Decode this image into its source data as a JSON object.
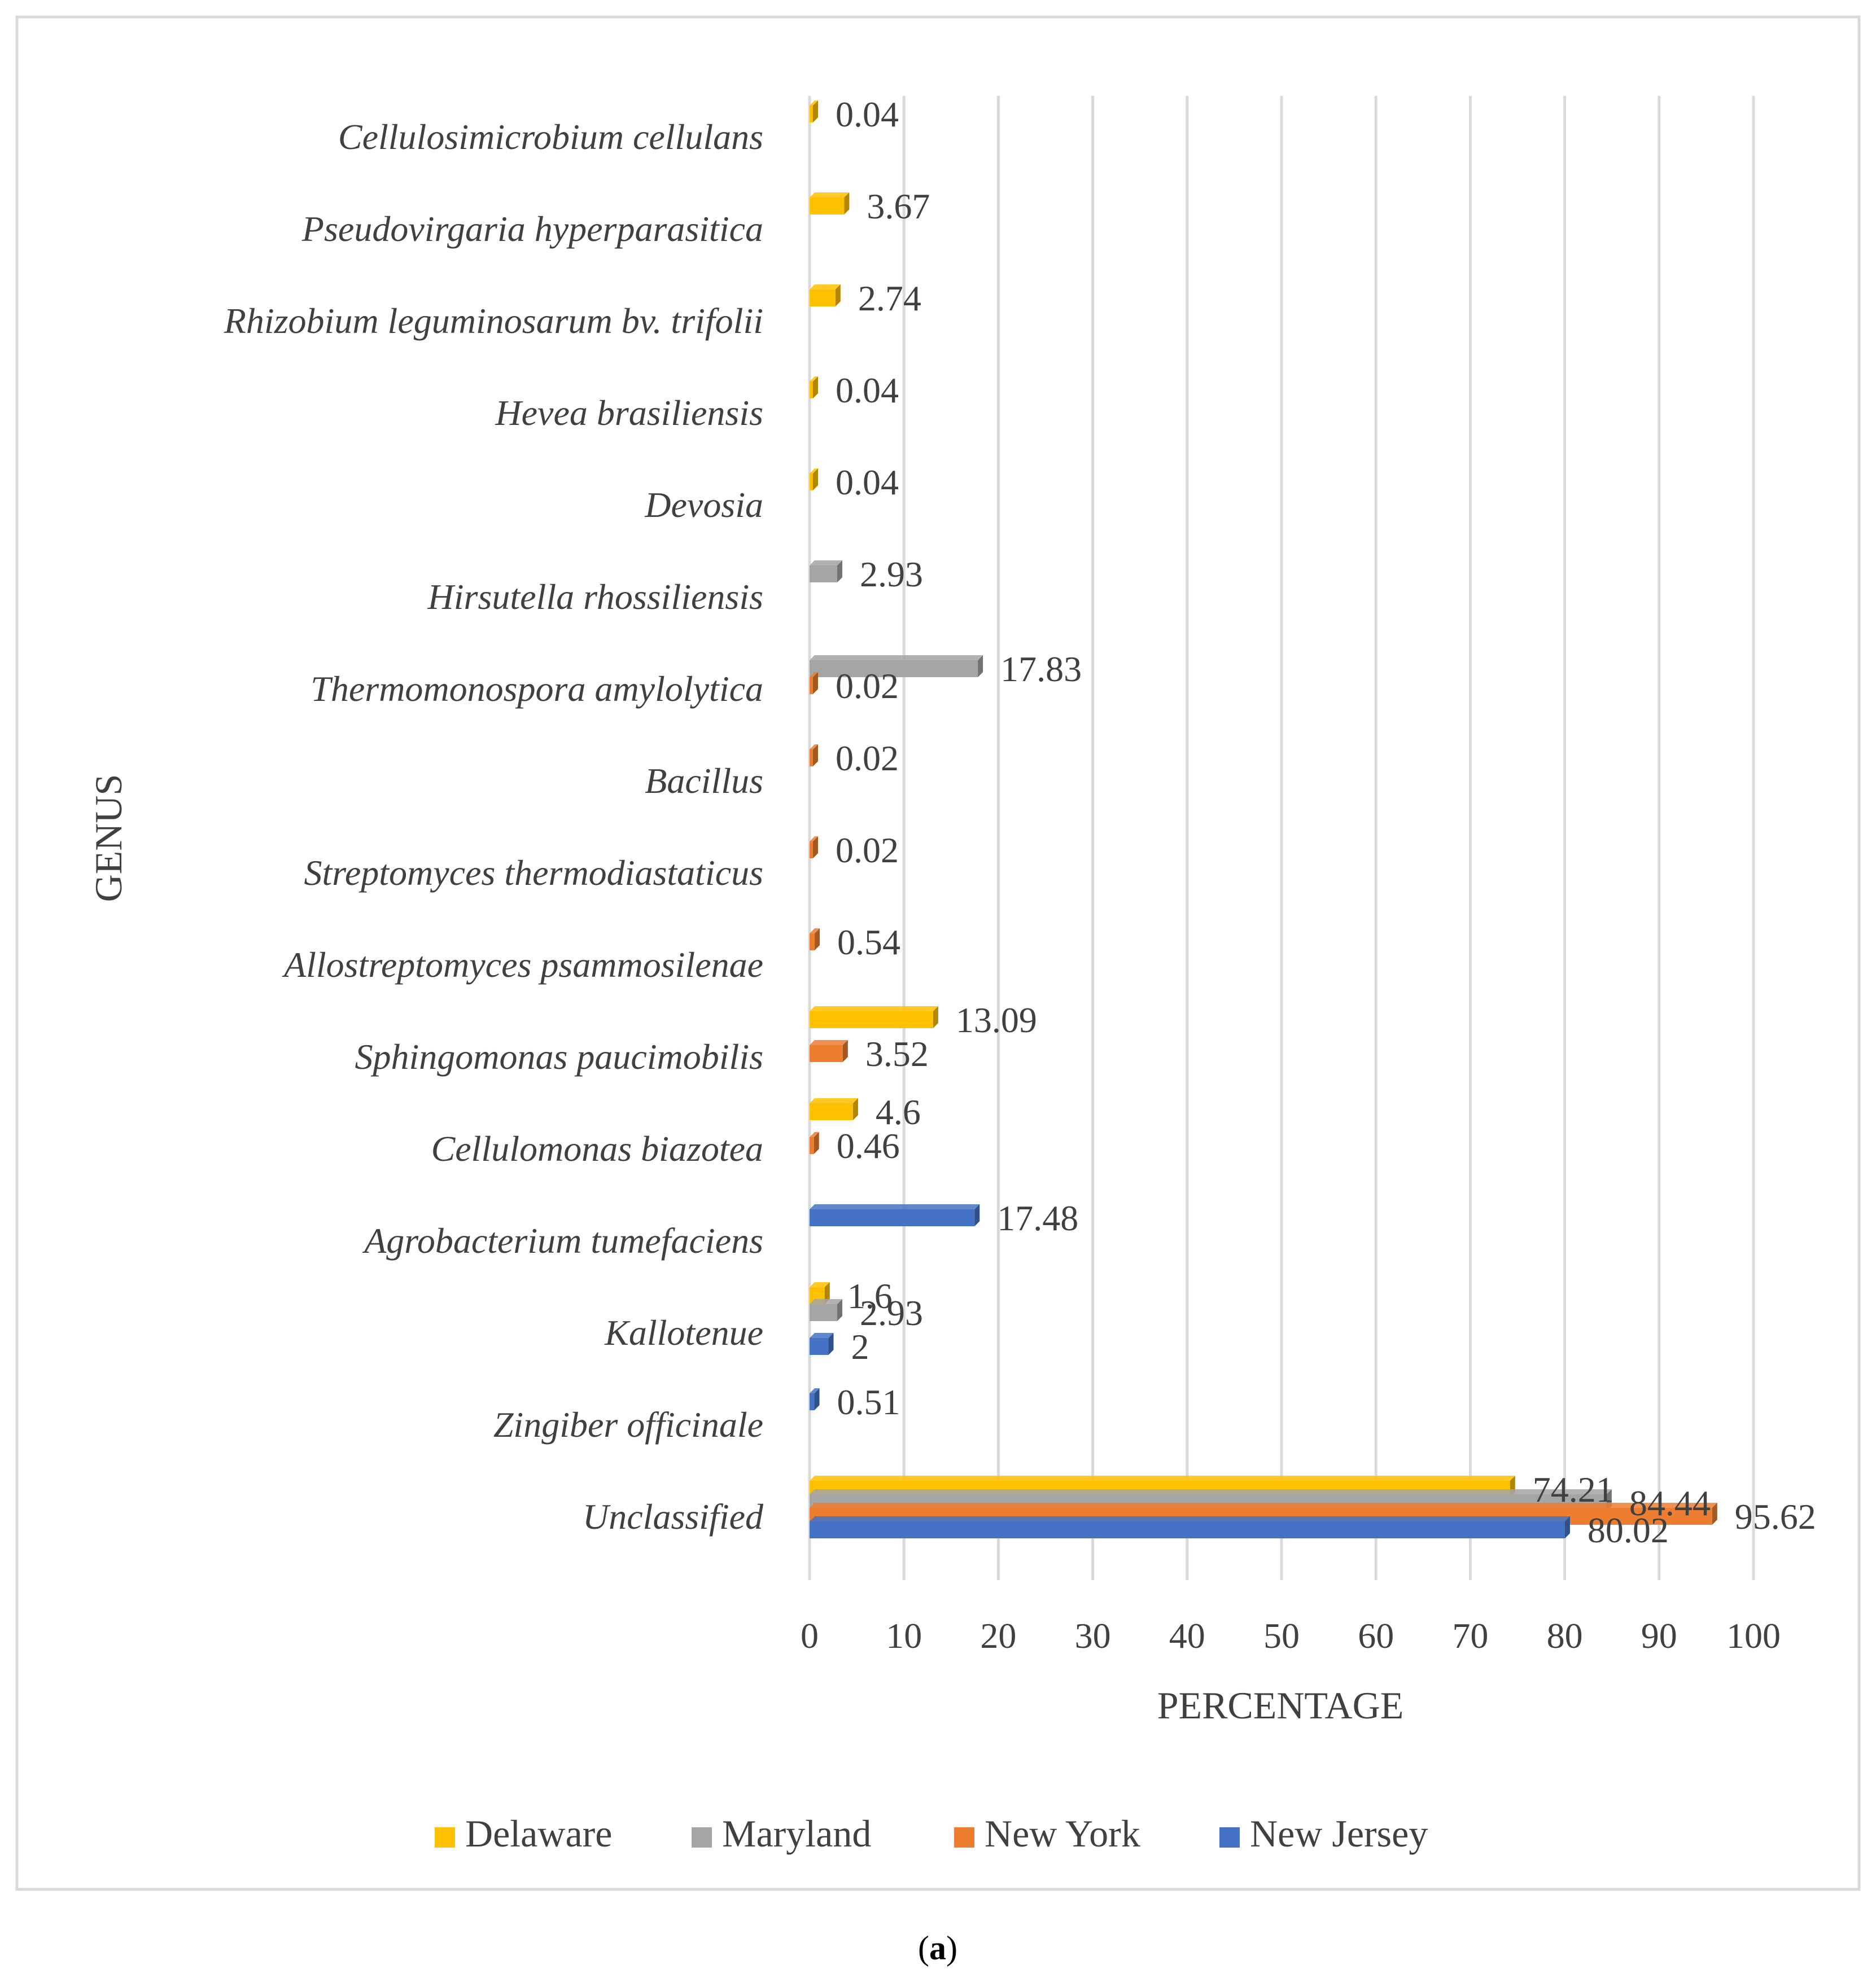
{
  "chart_data": {
    "type": "bar",
    "orientation": "horizontal",
    "title": "",
    "xlabel": "PERCENTAGE",
    "ylabel": "GENUS",
    "xlim": [
      0,
      100
    ],
    "xticks": [
      "0",
      "10",
      "20",
      "30",
      "40",
      "50",
      "60",
      "70",
      "80",
      "90",
      "100"
    ],
    "grid": "vertical",
    "legend_position": "bottom",
    "caption_letter": "a",
    "categories": [
      "Cellulosimicrobium cellulans",
      "Pseudovirgaria hyperparasitica",
      "Rhizobium leguminosarum bv. trifolii",
      "Hevea brasiliensis",
      "Devosia",
      "Hirsutella rhossiliensis",
      "Thermomonospora amylolytica",
      "Bacillus",
      "Streptomyces thermodiastaticus",
      "Allostreptomyces psammosilenae",
      "Sphingomonas paucimobilis",
      "Cellulomonas biazotea",
      "Agrobacterium tumefaciens",
      "Kallotenue",
      "Zingiber officinale",
      "Unclassified"
    ],
    "series": [
      {
        "name": "Delaware",
        "color": "#FFC000",
        "values": [
          0.04,
          3.67,
          2.74,
          0.04,
          0.04,
          null,
          null,
          null,
          null,
          null,
          13.09,
          4.6,
          null,
          1.6,
          null,
          74.21
        ],
        "labels": [
          "0.04",
          "3.67",
          "2.74",
          "0.04",
          "0.04",
          null,
          null,
          null,
          null,
          null,
          "13.09",
          "4.6",
          null,
          "1.6",
          null,
          "74.21"
        ]
      },
      {
        "name": "Maryland",
        "color": "#A5A5A5",
        "values": [
          null,
          null,
          null,
          null,
          null,
          2.93,
          17.83,
          null,
          null,
          null,
          null,
          null,
          null,
          2.93,
          null,
          84.44
        ],
        "labels": [
          null,
          null,
          null,
          null,
          null,
          "2.93",
          "17.83",
          null,
          null,
          null,
          null,
          null,
          null,
          "2.93",
          null,
          "84.44"
        ]
      },
      {
        "name": "New York",
        "color": "#ED7D31",
        "values": [
          null,
          null,
          null,
          null,
          null,
          null,
          0.02,
          0.02,
          0.02,
          0.54,
          3.52,
          0.46,
          null,
          null,
          null,
          95.62
        ],
        "labels": [
          null,
          null,
          null,
          null,
          null,
          null,
          "0.02",
          "0.02",
          "0.02",
          "0.54",
          "3.52",
          "0.46",
          null,
          null,
          null,
          "95.62"
        ]
      },
      {
        "name": "New Jersey",
        "color": "#4472C4",
        "values": [
          null,
          null,
          null,
          null,
          null,
          null,
          null,
          null,
          null,
          null,
          null,
          null,
          17.48,
          2,
          0.51,
          80.02
        ],
        "labels": [
          null,
          null,
          null,
          null,
          null,
          null,
          null,
          null,
          null,
          null,
          null,
          null,
          "17.48",
          "2",
          "0.51",
          "80.02"
        ]
      }
    ]
  }
}
